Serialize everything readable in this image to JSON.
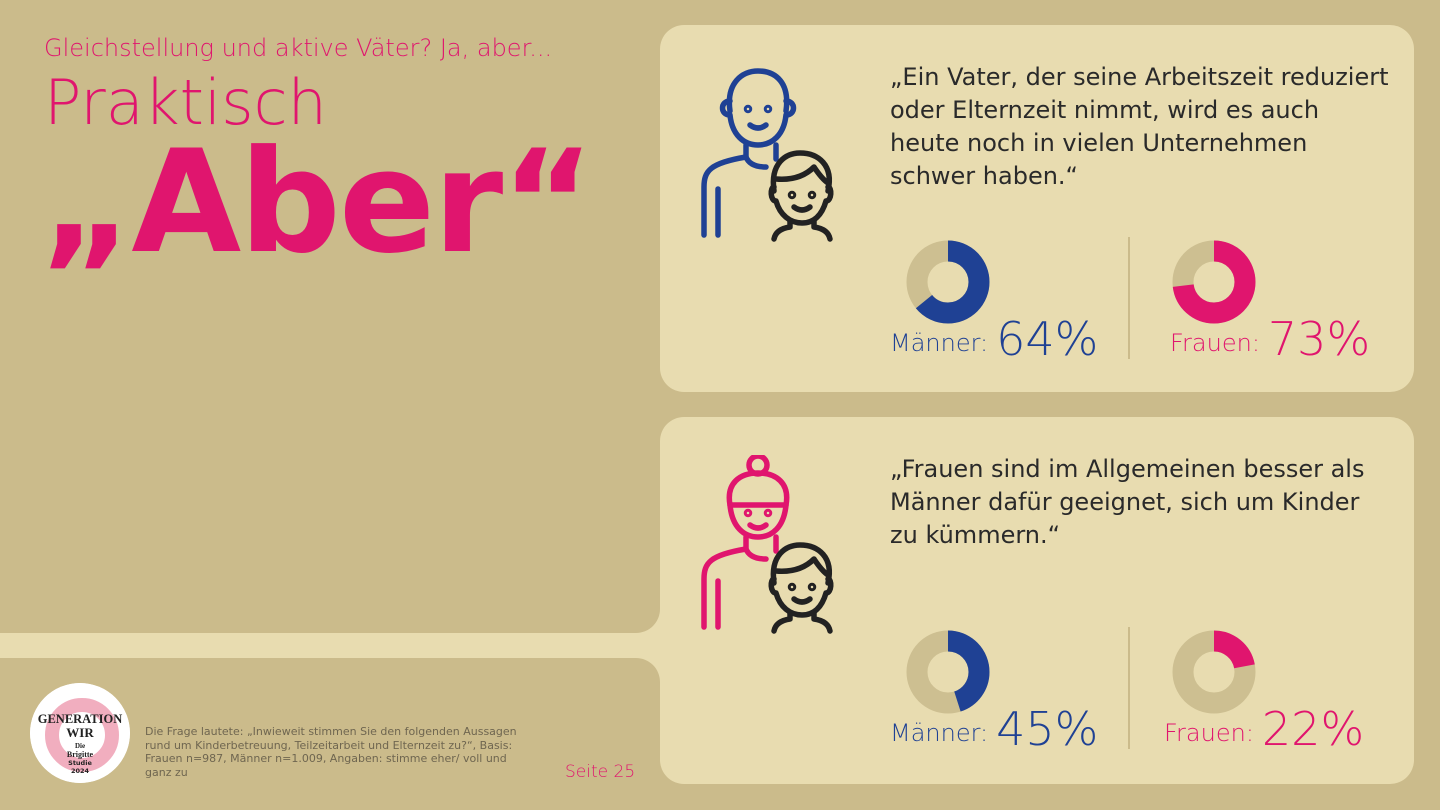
{
  "header": {
    "kicker": "Gleichstellung und aktive Väter? Ja, aber...",
    "title_line1": "Praktisch",
    "title_line2": "„Aber“"
  },
  "colors": {
    "background": "#cbbb8b",
    "panel": "#e8dcb0",
    "accent_pink": "#e0156e",
    "accent_blue": "#1f4194",
    "donut_track": "#cdbf91"
  },
  "chart_data": [
    {
      "type": "pie",
      "title": "„Ein Vater, der seine Arbeitszeit reduziert oder Elternzeit nimmt, wird es auch heute noch in vielen Unternehmen schwer haben.“",
      "series": [
        {
          "name": "Männer",
          "value": 64,
          "color": "#1f4194"
        },
        {
          "name": "Frauen",
          "value": 73,
          "color": "#e0156e"
        }
      ]
    },
    {
      "type": "pie",
      "title": "„Frauen sind im Allgemeinen besser als Männer dafür geeignet, sich um Kinder zu kümmern.“",
      "series": [
        {
          "name": "Männer",
          "value": 45,
          "color": "#1f4194"
        },
        {
          "name": "Frauen",
          "value": 22,
          "color": "#e0156e"
        }
      ]
    }
  ],
  "labels": {
    "men": "Männer:",
    "women": "Frauen:",
    "p1_men": "64%",
    "p1_women": "73%",
    "p2_men": "45%",
    "p2_women": "22%"
  },
  "footer": {
    "logo_text": "GENERATION WIR Die Brigitte Studie 2024",
    "note": "Die Frage lautete: „Inwieweit stimmen Sie den folgenden Aussagen rund um Kinderbetreuung, Teilzeitarbeit und Elternzeit zu?“, Basis: Frauen n=987, Männer n=1.009, Angaben: stimme eher/ voll und ganz zu",
    "page": "Seite 25"
  }
}
